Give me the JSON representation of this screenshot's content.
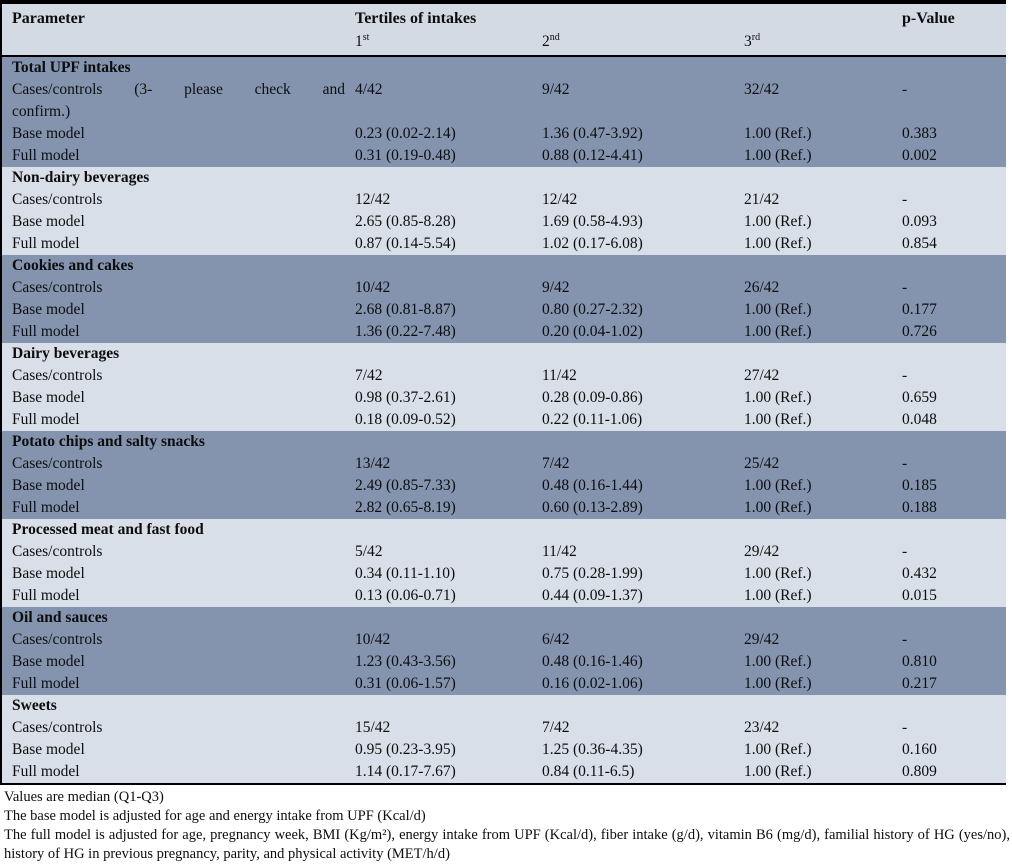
{
  "colors": {
    "header_bg": "#d4dae3",
    "dark_band": "#8494af",
    "light_band": "#d9dfe8",
    "border": "#000000"
  },
  "table": {
    "header": {
      "parameter": "Parameter",
      "tertiles": "Tertiles of intakes",
      "pvalue": "p-Value",
      "tertile1_base": "1",
      "tertile1_sup": "st",
      "tertile2_base": "2",
      "tertile2_sup": "nd",
      "tertile3_base": "3",
      "tertile3_sup": "rd"
    },
    "sections": [
      {
        "title": "Total UPF intakes",
        "shade": "dark",
        "rows": [
          {
            "label": "Cases/controls (3- please check and",
            "label2": "confirm.)",
            "t1": "4/42",
            "t2": "9/42",
            "t3": "32/42",
            "p": "-"
          },
          {
            "label": "Base model",
            "t1": "0.23 (0.02-2.14)",
            "t2": "1.36 (0.47-3.92)",
            "t3": "1.00 (Ref.)",
            "p": "0.383"
          },
          {
            "label": "Full model",
            "t1": "0.31 (0.19-0.48)",
            "t2": "0.88 (0.12-4.41)",
            "t3": "1.00 (Ref.)",
            "p": "0.002"
          }
        ]
      },
      {
        "title": "Non-dairy beverages",
        "shade": "light",
        "rows": [
          {
            "label": "Cases/controls",
            "t1": "12/42",
            "t2": "12/42",
            "t3": "21/42",
            "p": "-"
          },
          {
            "label": "Base model",
            "t1": "2.65 (0.85-8.28)",
            "t2": "1.69 (0.58-4.93)",
            "t3": "1.00 (Ref.)",
            "p": "0.093"
          },
          {
            "label": "Full model",
            "t1": "0.87 (0.14-5.54)",
            "t2": "1.02 (0.17-6.08)",
            "t3": "1.00 (Ref.)",
            "p": "0.854"
          }
        ]
      },
      {
        "title": "Cookies and cakes",
        "shade": "dark",
        "rows": [
          {
            "label": "Cases/controls",
            "t1": "10/42",
            "t2": "9/42",
            "t3": "26/42",
            "p": "-"
          },
          {
            "label": "Base model",
            "t1": "2.68 (0.81-8.87)",
            "t2": "0.80 (0.27-2.32)",
            "t3": "1.00 (Ref.)",
            "p": "0.177"
          },
          {
            "label": "Full model",
            "t1": "1.36 (0.22-7.48)",
            "t2": "0.20 (0.04-1.02)",
            "t3": "1.00 (Ref.)",
            "p": "0.726"
          }
        ]
      },
      {
        "title": "Dairy beverages",
        "shade": "light",
        "rows": [
          {
            "label": "Cases/controls",
            "t1": "7/42",
            "t2": "11/42",
            "t3": "27/42",
            "p": "-"
          },
          {
            "label": "Base model",
            "t1": "0.98 (0.37-2.61)",
            "t2": "0.28 (0.09-0.86)",
            "t3": "1.00 (Ref.)",
            "p": "0.659"
          },
          {
            "label": "Full model",
            "t1": "0.18 (0.09-0.52)",
            "t2": "0.22 (0.11-1.06)",
            "t3": "1.00 (Ref.)",
            "p": "0.048"
          }
        ]
      },
      {
        "title": "Potato chips and salty snacks",
        "shade": "dark",
        "rows": [
          {
            "label": "Cases/controls",
            "t1": "13/42",
            "t2": "7/42",
            "t3": "25/42",
            "p": "-"
          },
          {
            "label": "Base model",
            "t1": "2.49 (0.85-7.33)",
            "t2": "0.48 (0.16-1.44)",
            "t3": "1.00 (Ref.)",
            "p": "0.185"
          },
          {
            "label": "Full model",
            "t1": "2.82 (0.65-8.19)",
            "t2": "0.60 (0.13-2.89)",
            "t3": "1.00 (Ref.)",
            "p": "0.188"
          }
        ]
      },
      {
        "title": "Processed meat and fast food",
        "shade": "light",
        "rows": [
          {
            "label": "Cases/controls",
            "t1": "5/42",
            "t2": "11/42",
            "t3": "29/42",
            "p": "-"
          },
          {
            "label": "Base model",
            "t1": "0.34 (0.11-1.10)",
            "t2": "0.75 (0.28-1.99)",
            "t3": "1.00 (Ref.)",
            "p": "0.432"
          },
          {
            "label": "Full model",
            "t1": "0.13 (0.06-0.71)",
            "t2": "0.44 (0.09-1.37)",
            "t3": "1.00 (Ref.)",
            "p": "0.015"
          }
        ]
      },
      {
        "title": "Oil and sauces",
        "shade": "dark",
        "rows": [
          {
            "label": "Cases/controls",
            "t1": "10/42",
            "t2": "6/42",
            "t3": "29/42",
            "p": "-"
          },
          {
            "label": "Base model",
            "t1": "1.23 (0.43-3.56)",
            "t2": "0.48 (0.16-1.46)",
            "t3": "1.00 (Ref.)",
            "p": "0.810"
          },
          {
            "label": "Full model",
            "t1": "0.31 (0.06-1.57)",
            "t2": "0.16 (0.02-1.06)",
            "t3": "1.00 (Ref.)",
            "p": "0.217"
          }
        ]
      },
      {
        "title": "Sweets",
        "shade": "light",
        "rows": [
          {
            "label": "Cases/controls",
            "t1": "15/42",
            "t2": "7/42",
            "t3": "23/42",
            "p": "-"
          },
          {
            "label": "Base model",
            "t1": "0.95 (0.23-3.95)",
            "t2": "1.25 (0.36-4.35)",
            "t3": "1.00 (Ref.)",
            "p": "0.160"
          },
          {
            "label": "Full model",
            "t1": "1.14 (0.17-7.67)",
            "t2": "0.84 (0.11-6.5)",
            "t3": "1.00 (Ref.)",
            "p": "0.809"
          }
        ]
      }
    ]
  },
  "footnotes": [
    "Values are median (Q1-Q3)",
    "The base model is adjusted for age and energy intake from UPF (Kcal/d)",
    "The full model is adjusted for age, pregnancy week, BMI (Kg/m²), energy intake from UPF (Kcal/d), fiber intake (g/d), vitamin B6 (mg/d), familial history of HG (yes/no), history of HG in previous pregnancy, parity, and physical activity (MET/h/d)"
  ]
}
